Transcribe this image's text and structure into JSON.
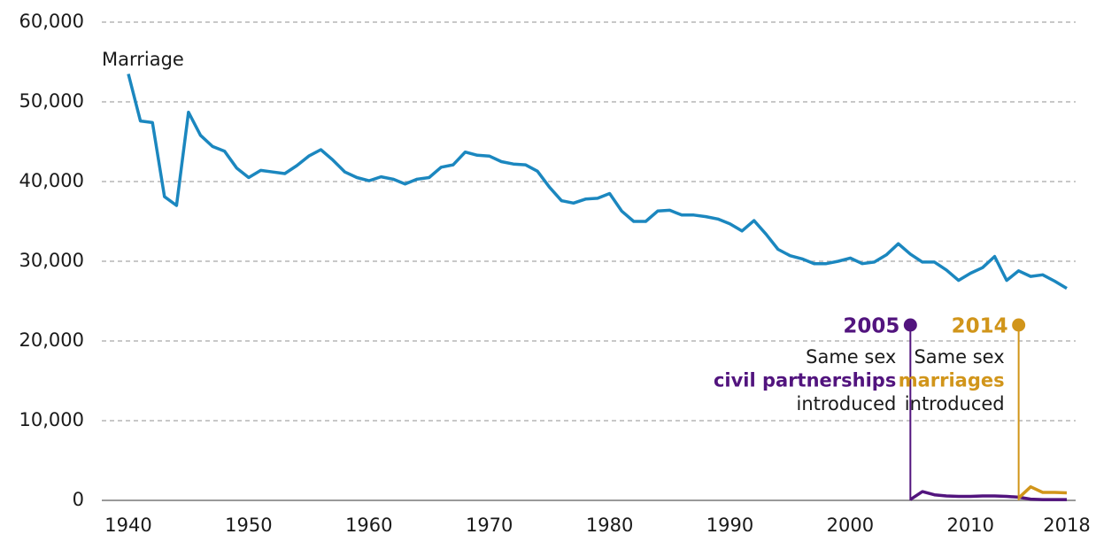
{
  "chart_data": {
    "type": "line",
    "xlim": [
      1940,
      2018
    ],
    "xticks": [
      1940,
      1950,
      1960,
      1970,
      1980,
      1990,
      2000,
      2010,
      2018
    ],
    "ylim": [
      0,
      60000
    ],
    "yticks": [
      0,
      {
        "value": 10000,
        "label": "10,000"
      },
      {
        "value": 20000,
        "label": "20,000"
      },
      {
        "value": 30000,
        "label": "30,000"
      },
      {
        "value": 40000,
        "label": "40,000"
      },
      {
        "value": 50000,
        "label": "50,000"
      },
      {
        "value": 60000,
        "label": "60,000"
      }
    ],
    "grid": true,
    "x": [
      1940,
      1941,
      1942,
      1943,
      1944,
      1945,
      1946,
      1947,
      1948,
      1949,
      1950,
      1951,
      1952,
      1953,
      1954,
      1955,
      1956,
      1957,
      1958,
      1959,
      1960,
      1961,
      1962,
      1963,
      1964,
      1965,
      1966,
      1967,
      1968,
      1969,
      1970,
      1971,
      1972,
      1973,
      1974,
      1975,
      1976,
      1977,
      1978,
      1979,
      1980,
      1981,
      1982,
      1983,
      1984,
      1985,
      1986,
      1987,
      1988,
      1989,
      1990,
      1991,
      1992,
      1993,
      1994,
      1995,
      1996,
      1997,
      1998,
      1999,
      2000,
      2001,
      2002,
      2003,
      2004,
      2005,
      2006,
      2007,
      2008,
      2009,
      2010,
      2011,
      2012,
      2013,
      2014,
      2015,
      2016,
      2017,
      2018
    ],
    "series": [
      {
        "name": "Marriage",
        "color": "#1b87bf",
        "values": [
          53500,
          47600,
          47400,
          38100,
          37000,
          48700,
          45800,
          44400,
          43800,
          41700,
          40500,
          41400,
          41200,
          41000,
          42000,
          43200,
          44000,
          42700,
          41200,
          40500,
          40100,
          40600,
          40300,
          39700,
          40300,
          40500,
          41800,
          42100,
          43700,
          43300,
          43200,
          42500,
          42200,
          42100,
          41300,
          39300,
          37600,
          37300,
          37800,
          37900,
          38500,
          36300,
          35000,
          35000,
          36300,
          36400,
          35800,
          35800,
          35600,
          35300,
          34700,
          33800,
          35100,
          33400,
          31500,
          30700,
          30300,
          29700,
          29700,
          30000,
          30400,
          29700,
          29900,
          30800,
          32200,
          30900,
          29900,
          29900,
          28900,
          27600,
          28500,
          29200,
          30600,
          27600,
          28800,
          28100,
          28300,
          27500,
          26600
        ]
      },
      {
        "color": "#52147e",
        "values": [
          null,
          null,
          null,
          null,
          null,
          null,
          null,
          null,
          null,
          null,
          null,
          null,
          null,
          null,
          null,
          null,
          null,
          null,
          null,
          null,
          null,
          null,
          null,
          null,
          null,
          null,
          null,
          null,
          null,
          null,
          null,
          null,
          null,
          null,
          null,
          null,
          null,
          null,
          null,
          null,
          null,
          null,
          null,
          null,
          null,
          null,
          null,
          null,
          null,
          null,
          null,
          null,
          null,
          null,
          null,
          null,
          null,
          null,
          null,
          null,
          null,
          null,
          null,
          null,
          null,
          100,
          1100,
          700,
          550,
          500,
          500,
          550,
          550,
          500,
          400,
          150,
          100,
          100,
          100
        ]
      },
      {
        "color": "#d1951a",
        "values": [
          null,
          null,
          null,
          null,
          null,
          null,
          null,
          null,
          null,
          null,
          null,
          null,
          null,
          null,
          null,
          null,
          null,
          null,
          null,
          null,
          null,
          null,
          null,
          null,
          null,
          null,
          null,
          null,
          null,
          null,
          null,
          null,
          null,
          null,
          null,
          null,
          null,
          null,
          null,
          null,
          null,
          null,
          null,
          null,
          null,
          null,
          null,
          null,
          null,
          null,
          null,
          null,
          null,
          null,
          null,
          null,
          null,
          null,
          null,
          null,
          null,
          null,
          null,
          null,
          null,
          null,
          null,
          null,
          null,
          null,
          null,
          null,
          null,
          null,
          300,
          1700,
          1000,
          1000,
          950
        ]
      }
    ],
    "annotations": [
      {
        "x": 2005,
        "y": 22000,
        "label": "2005",
        "color": "#52147e",
        "lines": [
          "Same sex",
          "civil partnerships",
          "introduced"
        ]
      },
      {
        "x": 2014,
        "y": 22000,
        "label": "2014",
        "color": "#d1951a",
        "lines": [
          "Same sex",
          "marriages",
          "introduced"
        ]
      }
    ]
  }
}
